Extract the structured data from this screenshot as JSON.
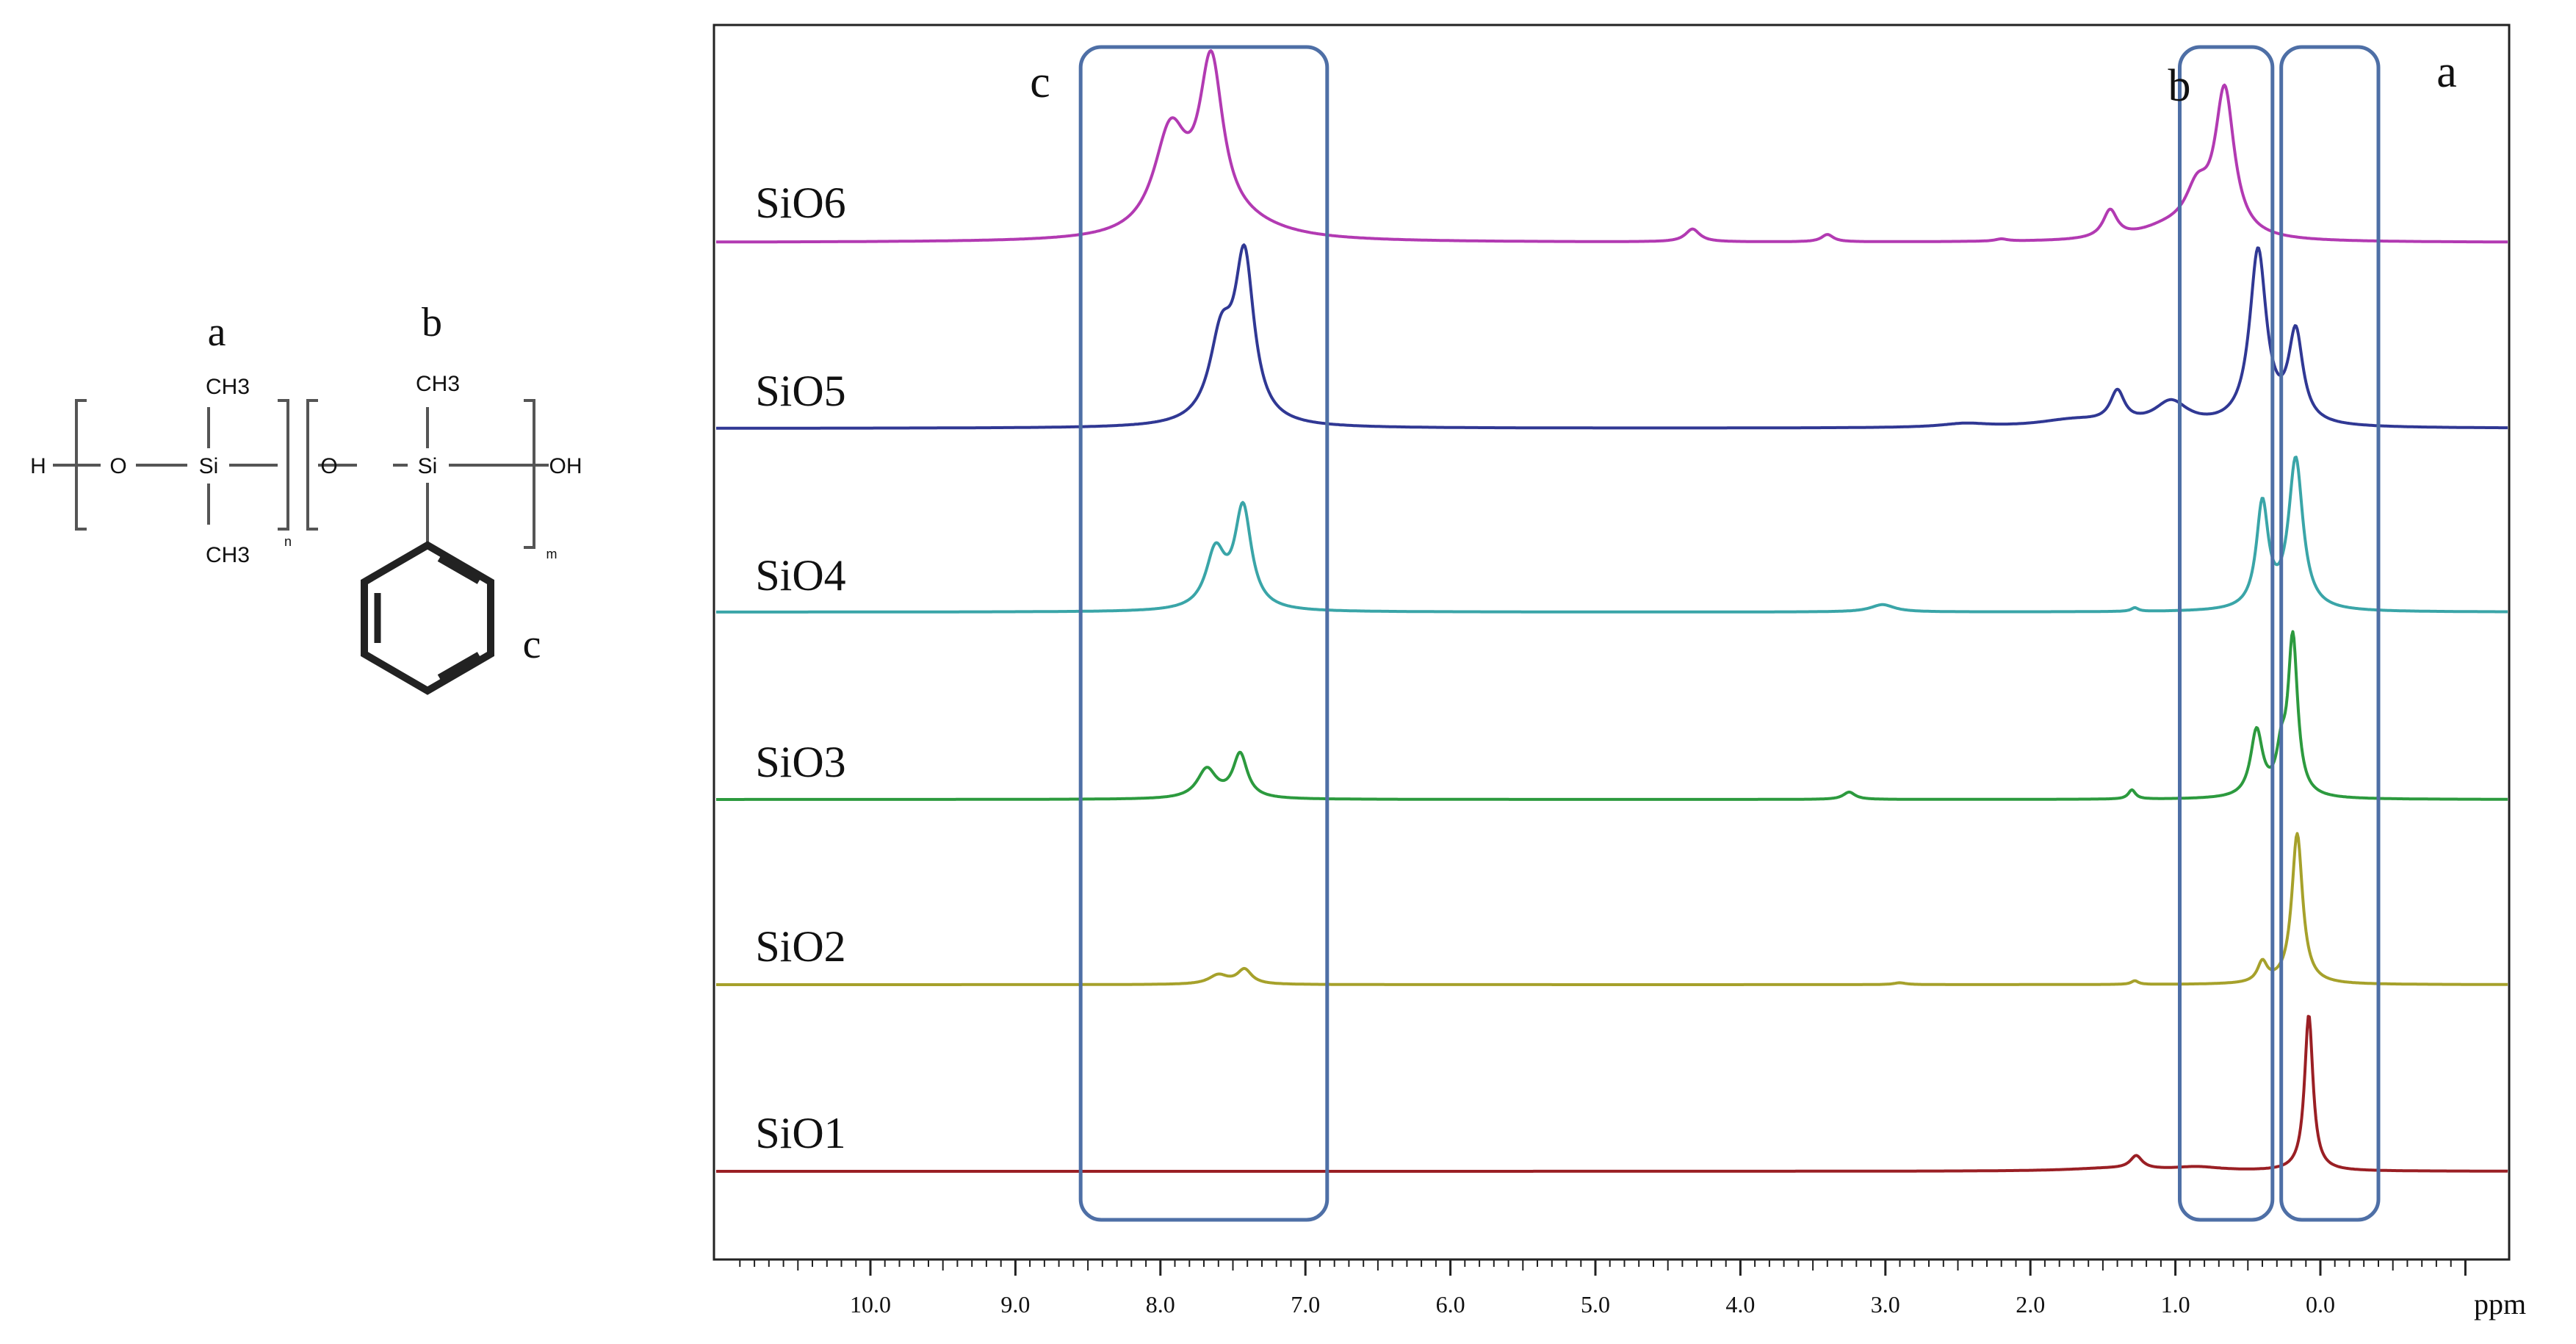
{
  "structure": {
    "sites": {
      "a": "a",
      "b": "b",
      "c": "c"
    },
    "atoms": {
      "h_end": "H",
      "o_left": "O",
      "si_left": "Si",
      "ch3_top_left": "CH3",
      "ch3_bottom_left": "CH3",
      "o_mid": "O",
      "si_right": "Si",
      "ch3_top_right": "CH3",
      "oh_end": "OH"
    },
    "subscripts": {
      "n": "n",
      "m": "m"
    }
  },
  "chart_data": {
    "type": "line",
    "title": "",
    "xlabel": "ppm",
    "ylabel": "",
    "xlim": [
      11.0,
      -1.1
    ],
    "x_reversed": true,
    "grid": false,
    "x_tick_labels": [
      {
        "value": 10.0,
        "label": "10.0"
      },
      {
        "value": 9.0,
        "label": "9.0"
      },
      {
        "value": 8.0,
        "label": "8.0"
      },
      {
        "value": 7.0,
        "label": "7.0"
      },
      {
        "value": 6.0,
        "label": "6.0"
      },
      {
        "value": 5.0,
        "label": "5.0"
      },
      {
        "value": 4.0,
        "label": "4.0"
      },
      {
        "value": 3.0,
        "label": "3.0"
      },
      {
        "value": 2.0,
        "label": "2.0"
      },
      {
        "value": 1.0,
        "label": "1.0"
      },
      {
        "value": 0.0,
        "label": "0.0"
      }
    ],
    "region_boxes": [
      {
        "label": "c",
        "from_ppm": 8.55,
        "to_ppm": 6.85
      },
      {
        "label": "b",
        "from_ppm": 0.97,
        "to_ppm": 0.33
      },
      {
        "label": "a",
        "from_ppm": 0.27,
        "to_ppm": -0.4
      }
    ],
    "series": [
      {
        "name": "SiO6",
        "color": "#b23ab2",
        "peaks": [
          {
            "ppm": 7.93,
            "height": 0.55,
            "width": 0.14
          },
          {
            "ppm": 7.65,
            "height": 0.88,
            "width": 0.1
          },
          {
            "ppm": 7.45,
            "height": 0.07,
            "width": 0.35
          },
          {
            "ppm": 4.33,
            "height": 0.07,
            "width": 0.06
          },
          {
            "ppm": 3.4,
            "height": 0.04,
            "width": 0.05
          },
          {
            "ppm": 2.2,
            "height": 0.012,
            "width": 0.05
          },
          {
            "ppm": 1.45,
            "height": 0.15,
            "width": 0.06
          },
          {
            "ppm": 1.05,
            "height": 0.06,
            "width": 0.25
          },
          {
            "ppm": 0.85,
            "height": 0.22,
            "width": 0.1
          },
          {
            "ppm": 0.66,
            "height": 0.79,
            "width": 0.08
          }
        ]
      },
      {
        "name": "SiO5",
        "color": "#303894",
        "peaks": [
          {
            "ppm": 7.58,
            "height": 0.45,
            "width": 0.1
          },
          {
            "ppm": 7.42,
            "height": 0.87,
            "width": 0.08
          },
          {
            "ppm": 2.45,
            "height": 0.02,
            "width": 0.2
          },
          {
            "ppm": 1.7,
            "height": 0.04,
            "width": 0.3
          },
          {
            "ppm": 1.4,
            "height": 0.17,
            "width": 0.06
          },
          {
            "ppm": 1.03,
            "height": 0.13,
            "width": 0.14
          },
          {
            "ppm": 0.43,
            "height": 0.95,
            "width": 0.07
          },
          {
            "ppm": 0.17,
            "height": 0.49,
            "width": 0.06
          }
        ]
      },
      {
        "name": "SiO4",
        "color": "#3aa5a8",
        "peaks": [
          {
            "ppm": 7.62,
            "height": 0.31,
            "width": 0.08
          },
          {
            "ppm": 7.43,
            "height": 0.55,
            "width": 0.07
          },
          {
            "ppm": 3.02,
            "height": 0.04,
            "width": 0.1
          },
          {
            "ppm": 1.28,
            "height": 0.02,
            "width": 0.03
          },
          {
            "ppm": 0.4,
            "height": 0.57,
            "width": 0.05
          },
          {
            "ppm": 0.17,
            "height": 0.82,
            "width": 0.06
          }
        ]
      },
      {
        "name": "SiO3",
        "color": "#2c9a3e",
        "peaks": [
          {
            "ppm": 7.68,
            "height": 0.16,
            "width": 0.08
          },
          {
            "ppm": 7.45,
            "height": 0.24,
            "width": 0.06
          },
          {
            "ppm": 3.25,
            "height": 0.04,
            "width": 0.05
          },
          {
            "ppm": 1.3,
            "height": 0.05,
            "width": 0.03
          },
          {
            "ppm": 0.44,
            "height": 0.36,
            "width": 0.05
          },
          {
            "ppm": 0.27,
            "height": 0.2,
            "width": 0.04
          },
          {
            "ppm": 0.19,
            "height": 0.86,
            "width": 0.04
          }
        ]
      },
      {
        "name": "SiO2",
        "color": "#a6a12b",
        "peaks": [
          {
            "ppm": 7.6,
            "height": 0.05,
            "width": 0.08
          },
          {
            "ppm": 7.42,
            "height": 0.08,
            "width": 0.06
          },
          {
            "ppm": 2.9,
            "height": 0.01,
            "width": 0.05
          },
          {
            "ppm": 1.28,
            "height": 0.02,
            "width": 0.03
          },
          {
            "ppm": 0.4,
            "height": 0.11,
            "width": 0.04
          },
          {
            "ppm": 0.16,
            "height": 0.82,
            "width": 0.045
          }
        ]
      },
      {
        "name": "SiO1",
        "color": "#9a1f24",
        "peaks": [
          {
            "ppm": 1.45,
            "height": 0.015,
            "width": 0.35
          },
          {
            "ppm": 1.27,
            "height": 0.07,
            "width": 0.05
          },
          {
            "ppm": 0.85,
            "height": 0.02,
            "width": 0.2
          },
          {
            "ppm": 0.08,
            "height": 0.85,
            "width": 0.035
          }
        ]
      }
    ]
  }
}
